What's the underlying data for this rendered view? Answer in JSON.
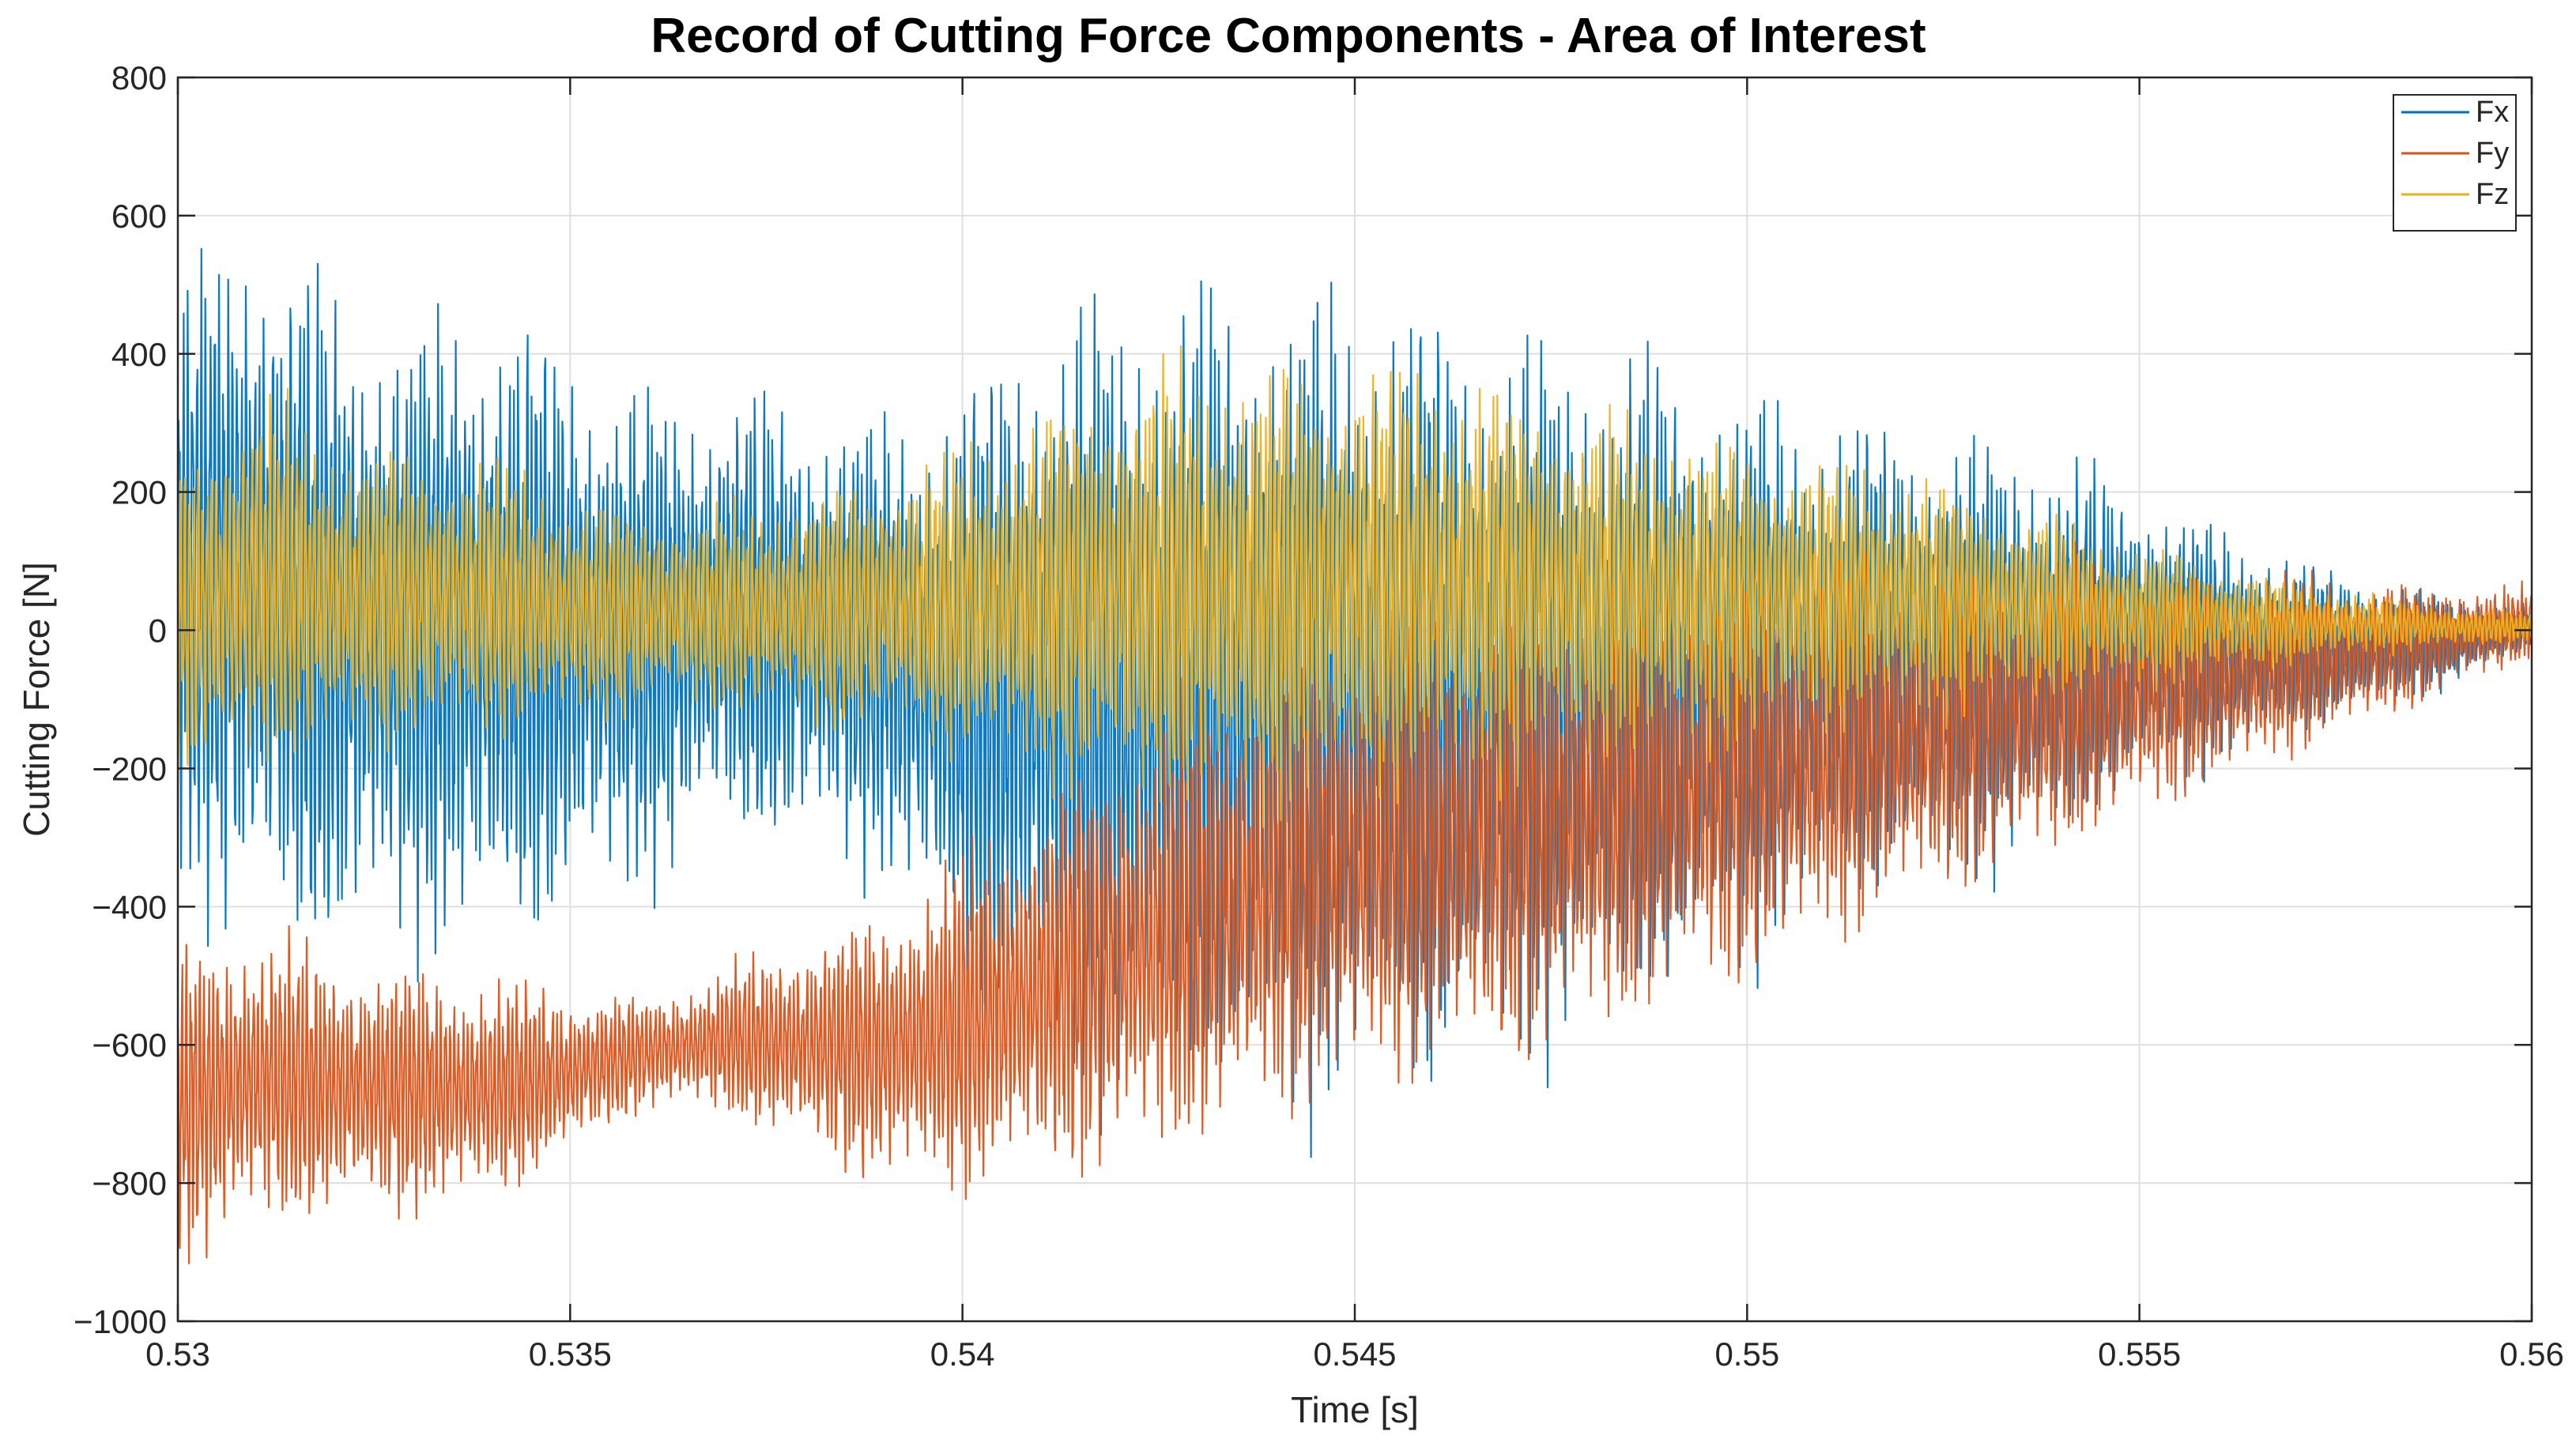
{
  "chart_data": {
    "type": "line",
    "title": "Record of Cutting Force Components - Area of Interest",
    "xlabel": "Time [s]",
    "ylabel": "Cutting Force [N]",
    "xlim": [
      0.53,
      0.56
    ],
    "ylim": [
      -1000,
      800
    ],
    "xticks": [
      0.53,
      0.535,
      0.54,
      0.545,
      0.55,
      0.555,
      0.56
    ],
    "xtick_labels": [
      "0.53",
      "0.535",
      "0.54",
      "0.545",
      "0.55",
      "0.555",
      "0.56"
    ],
    "yticks": [
      -1000,
      -800,
      -600,
      -400,
      -200,
      0,
      200,
      400,
      600,
      800
    ],
    "ytick_labels": [
      "−1000",
      "−800",
      "−600",
      "−400",
      "−200",
      "0",
      "200",
      "400",
      "600",
      "800"
    ],
    "grid": true,
    "legend_position": "top-right",
    "series": [
      {
        "name": "Fx",
        "color": "#0072BD",
        "envelope": {
          "t": [
            0.53,
            0.531,
            0.532,
            0.533,
            0.534,
            0.535,
            0.536,
            0.537,
            0.538,
            0.539,
            0.54,
            0.541,
            0.542,
            0.543,
            0.544,
            0.545,
            0.546,
            0.547,
            0.548,
            0.549,
            0.55,
            0.551,
            0.552,
            0.553,
            0.554,
            0.555,
            0.556,
            0.557,
            0.558,
            0.559,
            0.56
          ],
          "max": [
            580,
            690,
            560,
            520,
            550,
            470,
            400,
            400,
            380,
            360,
            420,
            560,
            580,
            590,
            600,
            590,
            560,
            520,
            490,
            470,
            420,
            370,
            350,
            330,
            300,
            240,
            180,
            120,
            90,
            60,
            40
          ],
          "min": [
            -430,
            -560,
            -560,
            -520,
            -560,
            -480,
            -420,
            -360,
            -380,
            -400,
            -600,
            -720,
            -760,
            -780,
            -780,
            -770,
            -760,
            -700,
            -660,
            -620,
            -540,
            -460,
            -420,
            -400,
            -360,
            -260,
            -220,
            -170,
            -130,
            -90,
            -30
          ]
        }
      },
      {
        "name": "Fy",
        "color": "#D95319",
        "envelope": {
          "t": [
            0.53,
            0.531,
            0.532,
            0.533,
            0.534,
            0.535,
            0.536,
            0.537,
            0.538,
            0.539,
            0.54,
            0.541,
            0.542,
            0.543,
            0.544,
            0.545,
            0.546,
            0.547,
            0.548,
            0.549,
            0.55,
            0.551,
            0.552,
            0.553,
            0.554,
            0.555,
            0.556,
            0.557,
            0.558,
            0.559,
            0.56
          ],
          "max": [
            -420,
            -400,
            -440,
            -460,
            -480,
            -500,
            -520,
            -470,
            -420,
            -380,
            -280,
            -200,
            -120,
            -50,
            20,
            60,
            80,
            100,
            120,
            130,
            120,
            130,
            140,
            140,
            130,
            120,
            110,
            100,
            90,
            80,
            70
          ],
          "min": [
            -950,
            -900,
            -880,
            -870,
            -850,
            -780,
            -700,
            -720,
            -780,
            -830,
            -860,
            -840,
            -820,
            -800,
            -760,
            -720,
            -700,
            -680,
            -640,
            -600,
            -550,
            -500,
            -450,
            -400,
            -350,
            -300,
            -250,
            -200,
            -150,
            -100,
            -50
          ]
        }
      },
      {
        "name": "Fz",
        "color": "#EDB120",
        "envelope": {
          "t": [
            0.53,
            0.531,
            0.532,
            0.533,
            0.534,
            0.535,
            0.536,
            0.537,
            0.538,
            0.539,
            0.54,
            0.541,
            0.542,
            0.543,
            0.544,
            0.545,
            0.546,
            0.547,
            0.548,
            0.549,
            0.55,
            0.551,
            0.552,
            0.553,
            0.554,
            0.555,
            0.556,
            0.557,
            0.558,
            0.559,
            0.56
          ],
          "max": [
            300,
            380,
            320,
            300,
            280,
            220,
            200,
            200,
            220,
            260,
            300,
            360,
            420,
            440,
            440,
            440,
            420,
            400,
            360,
            330,
            300,
            280,
            260,
            220,
            180,
            140,
            110,
            80,
            60,
            40,
            30
          ],
          "min": [
            -260,
            -240,
            -220,
            -200,
            -180,
            -160,
            -140,
            -140,
            -160,
            -180,
            -220,
            -260,
            -300,
            -320,
            -320,
            -300,
            -280,
            -260,
            -240,
            -220,
            -200,
            -180,
            -160,
            -140,
            -120,
            -100,
            -80,
            -60,
            -40,
            -30,
            -20
          ]
        }
      }
    ]
  }
}
